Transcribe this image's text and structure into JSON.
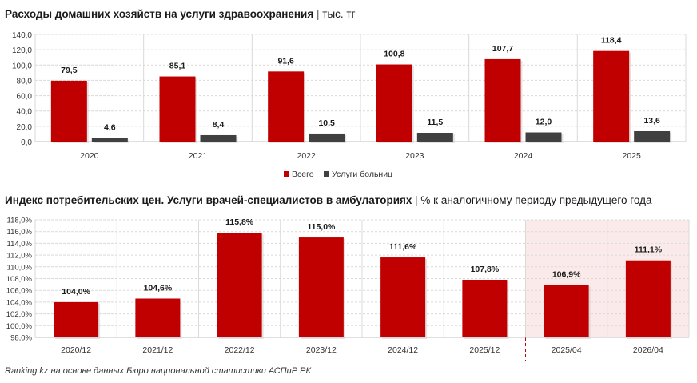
{
  "charts": [
    {
      "title": "Расходы домашних хозяйств на услуги здравоохранения",
      "unit": "тыс. тг",
      "chart_data": {
        "type": "bar",
        "categories": [
          "2020",
          "2021",
          "2022",
          "2023",
          "2024",
          "2025"
        ],
        "series": [
          {
            "name": "Всего",
            "values": [
              79.5,
              85.1,
              91.6,
              100.8,
              107.7,
              118.4
            ],
            "labels": [
              "79,5",
              "85,1",
              "91,6",
              "100,8",
              "107,7",
              "118,4"
            ],
            "color": "#c00000"
          },
          {
            "name": "Услуги больниц",
            "values": [
              4.6,
              8.4,
              10.5,
              11.5,
              12.0,
              13.6
            ],
            "labels": [
              "4,6",
              "8,4",
              "10,5",
              "11,5",
              "12,0",
              "13,6"
            ],
            "color": "#404040"
          }
        ],
        "ylim": [
          0,
          140
        ],
        "yticks": [
          "0,0",
          "20,0",
          "40,0",
          "60,0",
          "80,0",
          "100,0",
          "120,0",
          "140,0"
        ],
        "grid": true,
        "legend": "bottom-center"
      }
    },
    {
      "title": "Индекс потребительских цен. Услуги врачей-специалистов в амбулаториях",
      "unit": "% к аналогичному периоду предыдущего года",
      "chart_data": {
        "type": "bar",
        "categories": [
          "2020/12",
          "2021/12",
          "2022/12",
          "2023/12",
          "2024/12",
          "2025/12",
          "2025/04",
          "2026/04"
        ],
        "values": [
          104.0,
          104.6,
          115.8,
          115.0,
          111.6,
          107.8,
          106.9,
          111.1
        ],
        "labels": [
          "104,0%",
          "104,6%",
          "115,8%",
          "115,0%",
          "111,6%",
          "107,8%",
          "106,9%",
          "111,1%"
        ],
        "color": "#c00000",
        "ylim": [
          98,
          118
        ],
        "yticks": [
          "98,0%",
          "100,0%",
          "102,0%",
          "104,0%",
          "106,0%",
          "108,0%",
          "110,0%",
          "112,0%",
          "114,0%",
          "116,0%",
          "118,0%"
        ],
        "grid": true,
        "highlight_categories": [
          "2025/04",
          "2026/04"
        ],
        "highlight_color": "#fbeaea"
      }
    }
  ],
  "source": "Ranking.kz на основе данных Бюро национальной статистики АСПиР РК"
}
